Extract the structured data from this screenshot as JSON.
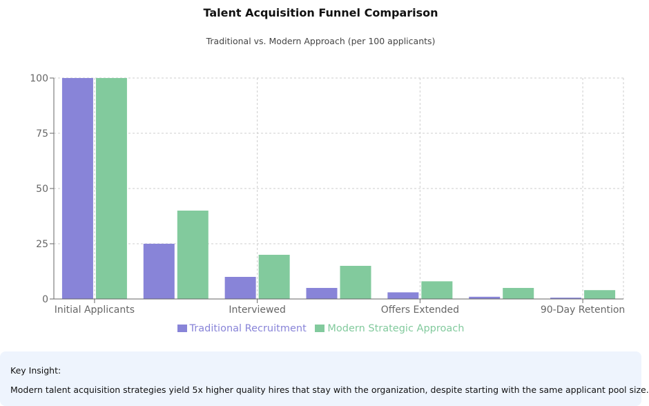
{
  "chart_data": {
    "type": "bar",
    "title": "Talent Acquisition Funnel Comparison",
    "subtitle": "Traditional vs. Modern Approach (per 100 applicants)",
    "categories": [
      "Initial Applicants",
      "",
      "Interviewed",
      "",
      "Offers Extended",
      "",
      "90-Day Retention"
    ],
    "series": [
      {
        "name": "Traditional Recruitment",
        "color": "#8884d8",
        "values": [
          100,
          25,
          10,
          5,
          3,
          1,
          0.6
        ]
      },
      {
        "name": "Modern Strategic Approach",
        "color": "#82ca9d",
        "values": [
          100,
          40,
          20,
          15,
          8,
          5,
          4
        ]
      }
    ],
    "yticks": [
      "0",
      "25",
      "50",
      "75",
      "100"
    ],
    "ylim": [
      0,
      100
    ],
    "grid": true,
    "legend": "bottom"
  },
  "insight": {
    "heading": "Key Insight:",
    "body": "Modern talent acquisition strategies yield 5x higher quality hires that stay with the organization, despite starting with the same applicant pool size."
  }
}
